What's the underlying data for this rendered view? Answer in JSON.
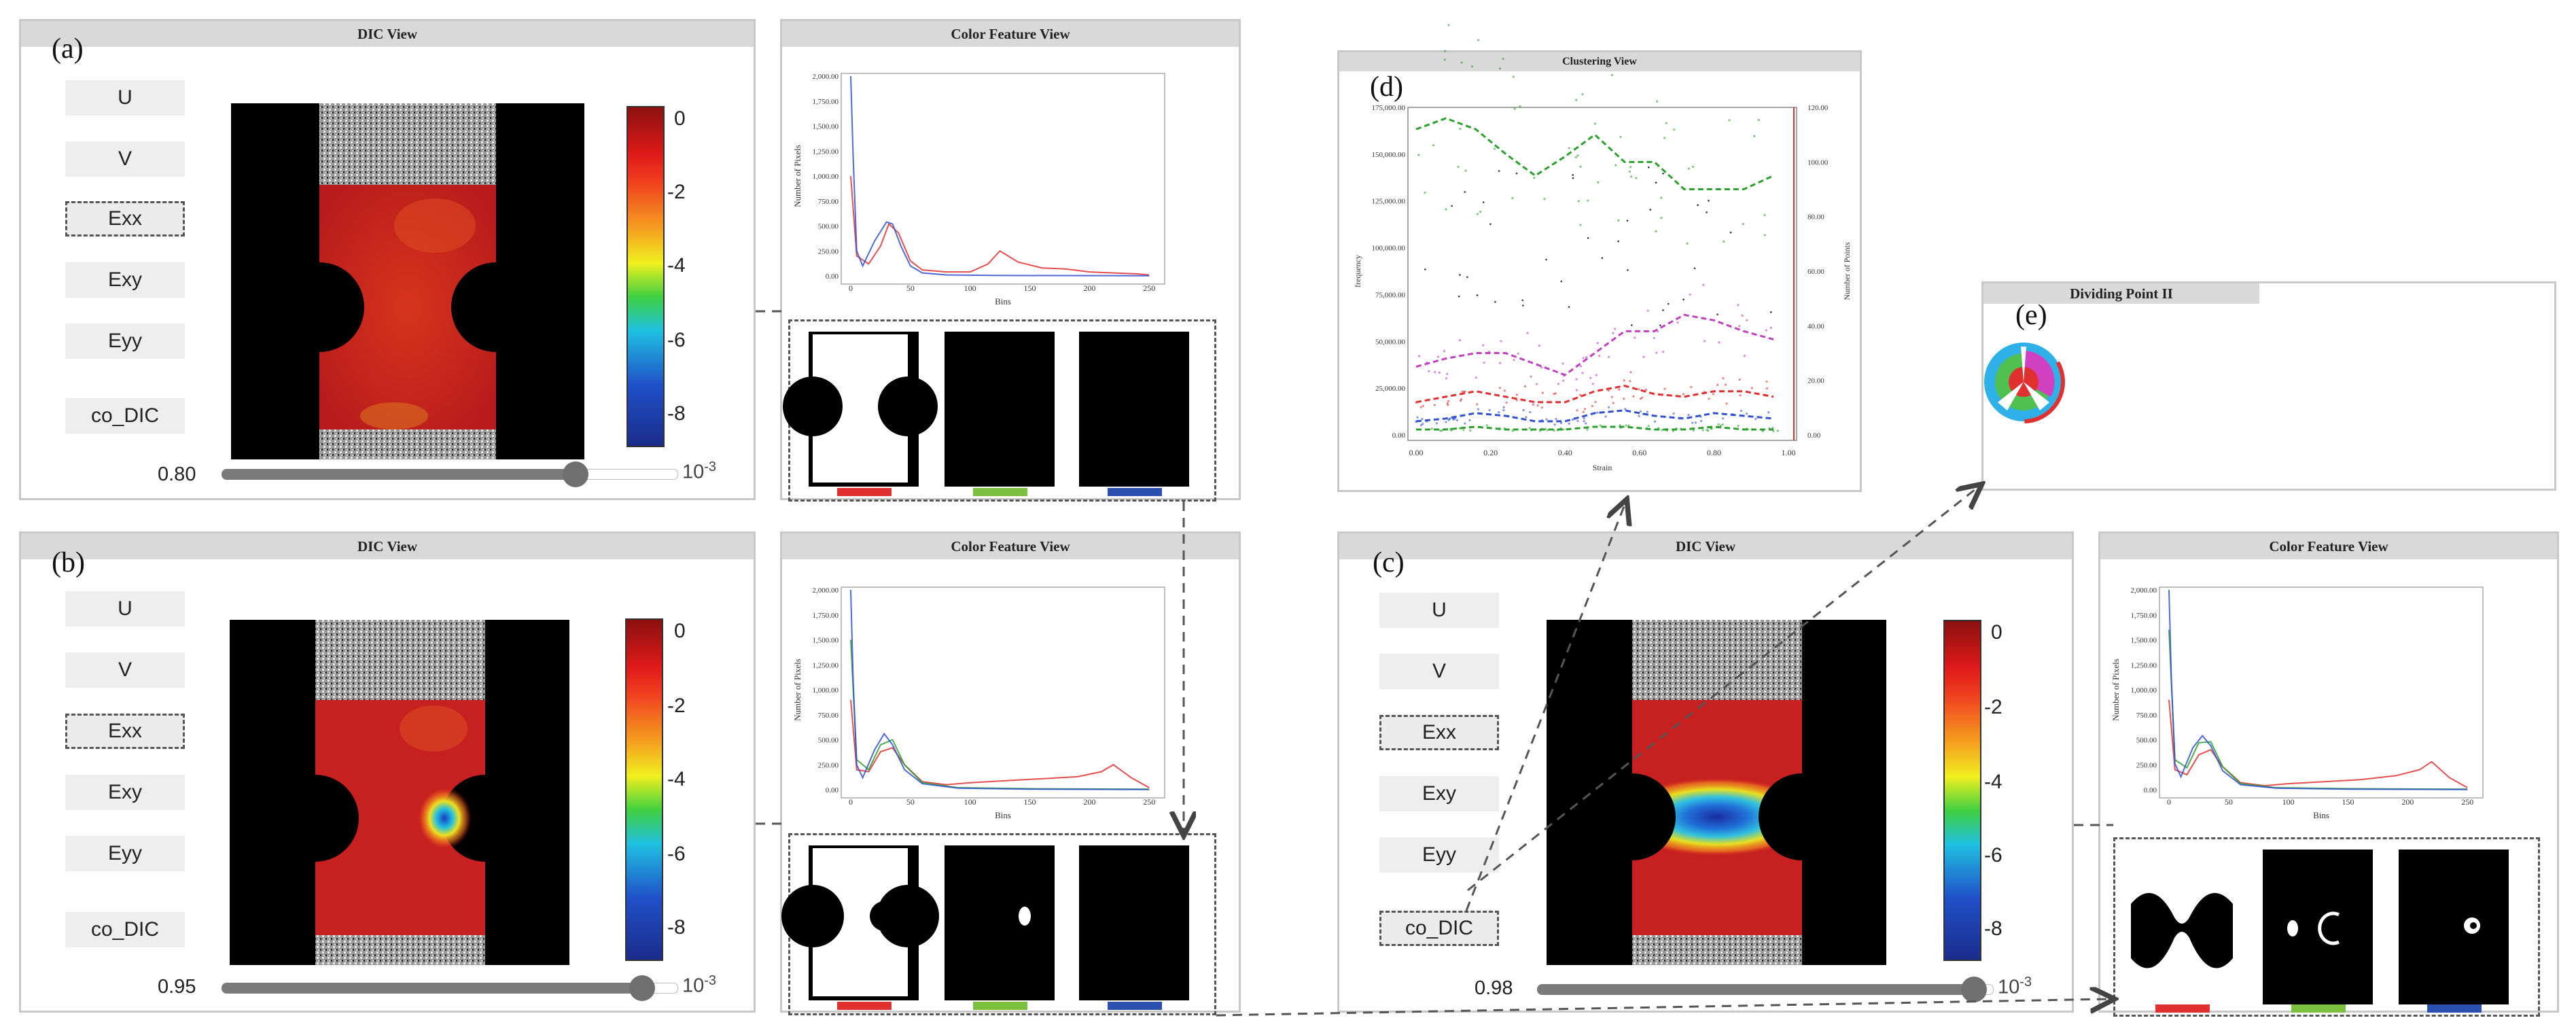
{
  "panels": {
    "a": {
      "letter": "(a)",
      "dic_title": "DIC View",
      "cf_title": "Color Feature View",
      "slider_value": "0.80",
      "slider_fraction": 0.8,
      "unit": "10-3"
    },
    "b": {
      "letter": "(b)",
      "dic_title": "DIC View",
      "cf_title": "Color Feature View",
      "slider_value": "0.95",
      "slider_fraction": 0.95,
      "unit": "10-3"
    },
    "c": {
      "letter": "(c)",
      "dic_title": "DIC View",
      "cf_title": "Color Feature View",
      "slider_value": "0.98",
      "slider_fraction": 0.98,
      "unit": "10-3"
    }
  },
  "buttons": [
    "U",
    "V",
    "Exx",
    "Exy",
    "Eyy",
    "co_DIC"
  ],
  "colorbar_ticks": [
    "0",
    "-2",
    "-4",
    "-6",
    "-8"
  ],
  "colors": {
    "red": "#e03030",
    "green": "#2ca02c",
    "blue": "#3050d0",
    "mag": "#c040c0"
  },
  "clustering": {
    "letter": "(d)",
    "title": "Clustering View"
  },
  "dividing": {
    "letter": "(e)",
    "title": "Dividing Point II"
  },
  "chart_data": [
    {
      "type": "line",
      "title": "Color Feature View (a)",
      "xlabel": "Bins",
      "ylabel": "Number of Pixels",
      "xlim": [
        0,
        255
      ],
      "ylim": [
        0,
        2000
      ],
      "xticks": [
        "0",
        "50",
        "100",
        "150",
        "200",
        "250"
      ],
      "yticks": [
        "0.00",
        "250.00",
        "500.00",
        "750.00",
        "1,000.00",
        "1,250.00",
        "1,500.00",
        "1,750.00",
        "2,000.00"
      ],
      "series": [
        {
          "name": "red",
          "x": [
            0,
            5,
            15,
            25,
            32,
            40,
            50,
            60,
            80,
            100,
            115,
            125,
            140,
            160,
            180,
            200,
            220,
            240,
            250
          ],
          "y": [
            1000,
            200,
            120,
            300,
            520,
            430,
            150,
            60,
            40,
            40,
            120,
            250,
            140,
            80,
            70,
            40,
            30,
            20,
            10
          ]
        },
        {
          "name": "blue",
          "x": [
            0,
            2,
            5,
            10,
            20,
            30,
            35,
            42,
            50,
            60,
            80,
            120,
            180,
            250
          ],
          "y": [
            2000,
            1200,
            250,
            100,
            350,
            540,
            520,
            300,
            100,
            30,
            10,
            5,
            3,
            2
          ]
        }
      ]
    },
    {
      "type": "line",
      "title": "Color Feature View (b)",
      "xlabel": "Bins",
      "ylabel": "Number of Pixels",
      "xlim": [
        0,
        255
      ],
      "ylim": [
        0,
        2000
      ],
      "xticks": [
        "0",
        "50",
        "100",
        "150",
        "200",
        "250"
      ],
      "yticks": [
        "0.00",
        "250.00",
        "500.00",
        "750.00",
        "1,000.00",
        "1,250.00",
        "1,500.00",
        "1,750.00",
        "2,000.00"
      ],
      "series": [
        {
          "name": "red",
          "x": [
            0,
            5,
            15,
            25,
            35,
            45,
            60,
            80,
            100,
            130,
            160,
            190,
            210,
            220,
            235,
            250
          ],
          "y": [
            900,
            200,
            180,
            380,
            420,
            250,
            80,
            50,
            70,
            90,
            110,
            130,
            180,
            250,
            120,
            20
          ]
        },
        {
          "name": "green",
          "x": [
            0,
            5,
            15,
            25,
            35,
            45,
            60,
            90,
            150,
            250
          ],
          "y": [
            1500,
            300,
            200,
            450,
            500,
            250,
            70,
            20,
            10,
            5
          ]
        },
        {
          "name": "blue",
          "x": [
            0,
            2,
            5,
            10,
            20,
            28,
            35,
            45,
            60,
            90,
            150,
            250
          ],
          "y": [
            2000,
            1100,
            250,
            120,
            400,
            560,
            450,
            200,
            60,
            15,
            5,
            2
          ]
        }
      ]
    },
    {
      "type": "line",
      "title": "Color Feature View (c)",
      "xlabel": "Bins",
      "ylabel": "Number of Pixels",
      "xlim": [
        0,
        255
      ],
      "ylim": [
        0,
        2000
      ],
      "xticks": [
        "0",
        "50",
        "100",
        "150",
        "200",
        "250"
      ],
      "yticks": [
        "0.00",
        "250.00",
        "500.00",
        "750.00",
        "1,000.00",
        "1,250.00",
        "1,500.00",
        "1,750.00",
        "2,000.00"
      ],
      "series": [
        {
          "name": "red",
          "x": [
            0,
            5,
            15,
            25,
            35,
            45,
            60,
            80,
            100,
            130,
            160,
            190,
            210,
            220,
            235,
            250
          ],
          "y": [
            900,
            200,
            150,
            350,
            400,
            230,
            70,
            40,
            60,
            80,
            100,
            140,
            200,
            280,
            120,
            20
          ]
        },
        {
          "name": "green",
          "x": [
            0,
            5,
            15,
            25,
            35,
            45,
            60,
            90,
            150,
            250
          ],
          "y": [
            1600,
            300,
            220,
            470,
            480,
            230,
            60,
            20,
            10,
            5
          ]
        },
        {
          "name": "blue",
          "x": [
            0,
            2,
            5,
            10,
            20,
            28,
            35,
            45,
            60,
            90,
            150,
            250
          ],
          "y": [
            2000,
            1100,
            260,
            130,
            420,
            540,
            440,
            190,
            50,
            15,
            5,
            2
          ]
        }
      ]
    },
    {
      "type": "scatter",
      "title": "Clustering View",
      "xlabel": "Strain",
      "ylabel": "frequency",
      "y2label": "Number of Points",
      "xlim": [
        0,
        1.0
      ],
      "ylim": [
        0,
        175000
      ],
      "y2lim": [
        0,
        120
      ],
      "xticks": [
        "0.00",
        "0.20",
        "0.40",
        "0.60",
        "0.80",
        "1.00"
      ],
      "yticks": [
        "0.00",
        "25,000.00",
        "50,000.00",
        "75,000.00",
        "100,000.00",
        "125,000.00",
        "150,000.00",
        "175,000.00"
      ],
      "y2ticks": [
        "0.00",
        "20.00",
        "40.00",
        "60.00",
        "80.00",
        "100.00",
        "120.00"
      ],
      "series": [
        {
          "name": "green-top",
          "x": [
            0.0,
            0.08,
            0.16,
            0.24,
            0.32,
            0.4,
            0.48,
            0.56,
            0.64,
            0.72,
            0.8,
            0.88,
            0.96
          ],
          "y": [
            112,
            116,
            112,
            103,
            95,
            102,
            110,
            100,
            100,
            90,
            90,
            90,
            95
          ]
        },
        {
          "name": "magenta",
          "x": [
            0.0,
            0.08,
            0.16,
            0.24,
            0.32,
            0.4,
            0.48,
            0.56,
            0.64,
            0.72,
            0.8,
            0.88,
            0.96
          ],
          "y": [
            25,
            28,
            30,
            30,
            26,
            22,
            30,
            38,
            38,
            44,
            42,
            38,
            35
          ]
        },
        {
          "name": "red",
          "x": [
            0.0,
            0.08,
            0.16,
            0.24,
            0.32,
            0.4,
            0.48,
            0.56,
            0.64,
            0.72,
            0.8,
            0.88,
            0.96
          ],
          "y": [
            12,
            14,
            16,
            14,
            12,
            12,
            16,
            18,
            15,
            14,
            16,
            16,
            14
          ]
        },
        {
          "name": "blue",
          "x": [
            0.0,
            0.08,
            0.16,
            0.24,
            0.32,
            0.4,
            0.48,
            0.56,
            0.64,
            0.72,
            0.8,
            0.88,
            0.96
          ],
          "y": [
            5,
            6,
            8,
            7,
            5,
            5,
            8,
            9,
            7,
            6,
            8,
            7,
            6
          ]
        },
        {
          "name": "green-bottom",
          "x": [
            0.0,
            0.08,
            0.16,
            0.24,
            0.32,
            0.4,
            0.48,
            0.56,
            0.64,
            0.72,
            0.8,
            0.88,
            0.96
          ],
          "y": [
            2,
            2,
            3,
            2,
            2,
            2,
            3,
            3,
            2,
            2,
            3,
            2,
            2
          ]
        }
      ]
    }
  ]
}
